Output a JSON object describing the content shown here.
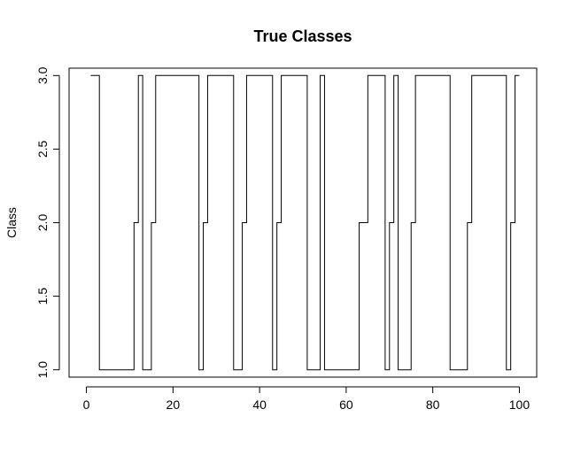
{
  "chart_data": {
    "type": "line",
    "title": "True Classes",
    "xlabel": "",
    "ylabel": "Class",
    "xlim": [
      -4,
      104
    ],
    "ylim": [
      0.95,
      3.05
    ],
    "x_ticks": [
      0,
      20,
      40,
      60,
      80,
      100
    ],
    "y_ticks": [
      1.0,
      1.5,
      2.0,
      2.5,
      3.0
    ],
    "x_tick_labels": [
      "0",
      "20",
      "40",
      "60",
      "80",
      "100"
    ],
    "y_tick_labels": [
      "1.0",
      "1.5",
      "2.0",
      "2.5",
      "3.0"
    ],
    "line_style": "step",
    "grid": false,
    "colors": {
      "line": "#000000",
      "axis": "#000000",
      "background": "#ffffff"
    },
    "series": [
      {
        "x": [
          1,
          2,
          3,
          4,
          5,
          6,
          7,
          8,
          9,
          10,
          11,
          12,
          13,
          14,
          15,
          16,
          17,
          18,
          19,
          20,
          21,
          22,
          23,
          24,
          25,
          26,
          27,
          28,
          29,
          30,
          31,
          32,
          33,
          34,
          35,
          36,
          37,
          38,
          39,
          40,
          41,
          42,
          43,
          44,
          45,
          46,
          47,
          48,
          49,
          50,
          51,
          52,
          53,
          54,
          55,
          56,
          57,
          58,
          59,
          60,
          61,
          62,
          63,
          64,
          65,
          66,
          67,
          68,
          69,
          70,
          71,
          72,
          73,
          74,
          75,
          76,
          77,
          78,
          79,
          80,
          81,
          82,
          83,
          84,
          85,
          86,
          87,
          88,
          89,
          90,
          91,
          92,
          93,
          94,
          95,
          96,
          97,
          98,
          99,
          100
        ],
        "y": [
          3,
          3,
          1,
          1,
          1,
          1,
          1,
          1,
          1,
          1,
          2,
          3,
          1,
          1,
          2,
          3,
          3,
          3,
          3,
          3,
          3,
          3,
          3,
          3,
          3,
          1,
          2,
          3,
          3,
          3,
          3,
          3,
          3,
          1,
          1,
          2,
          3,
          3,
          3,
          3,
          3,
          3,
          1,
          2,
          3,
          3,
          3,
          3,
          3,
          3,
          1,
          1,
          1,
          3,
          1,
          1,
          1,
          1,
          1,
          1,
          1,
          1,
          2,
          2,
          3,
          3,
          3,
          3,
          1,
          2,
          3,
          1,
          1,
          1,
          2,
          3,
          3,
          3,
          3,
          3,
          3,
          3,
          3,
          1,
          1,
          1,
          1,
          2,
          3,
          3,
          3,
          3,
          3,
          3,
          3,
          3,
          1,
          2,
          3,
          3
        ]
      }
    ]
  }
}
